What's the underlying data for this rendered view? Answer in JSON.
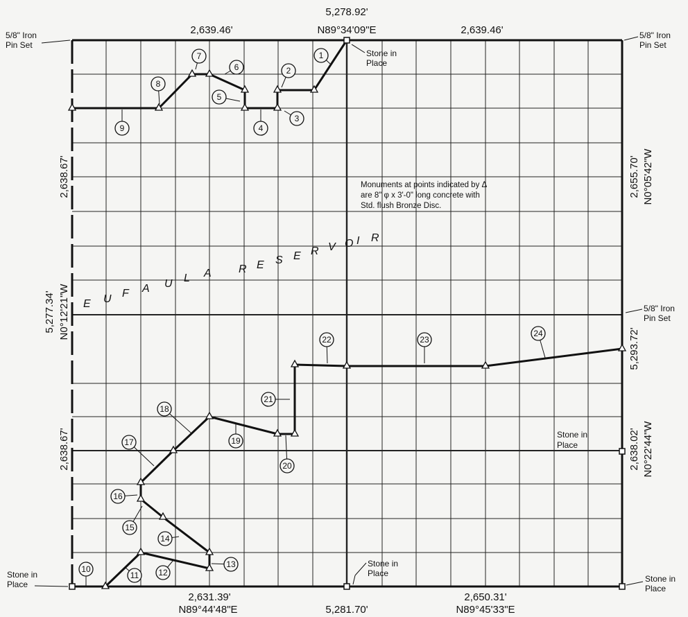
{
  "top": {
    "total": "5,278.92'",
    "bearing": "N89°34'09\"E",
    "left_len": "2,639.46'",
    "right_len": "2,639.46'"
  },
  "bottom": {
    "total": "5,281.70'",
    "left_len": "2,631.39'",
    "left_bearing": "N89°44'48\"E",
    "right_len": "2,650.31'",
    "right_bearing": "N89°45'33\"E"
  },
  "left_side": {
    "total": "5,277.34'",
    "bearing": "N0°12'21\"W",
    "upper_len": "2,638.67'",
    "lower_len": "2,638.67'"
  },
  "right_side": {
    "upper_len": "2,655.70'",
    "upper_bearing": "N0°05'42\"W",
    "total": "5,293.72'",
    "lower_len": "2,638.02'",
    "lower_bearing": "N0°22'44\"W"
  },
  "corners": {
    "nw_l1": "5/8\" Iron",
    "nw_l2": "Pin Set",
    "ne_l1": "5/8\" Iron",
    "ne_l2": "Pin Set",
    "e_l1": "5/8\" Iron",
    "e_l2": "Pin Set",
    "sw_l1": "Stone in",
    "sw_l2": "Place",
    "se_l1": "Stone in",
    "se_l2": "Place",
    "s_l1": "Stone in",
    "s_l2": "Place",
    "n_l1": "Stone in",
    "n_l2": "Place",
    "er_l1": "Stone in",
    "er_l2": "Place"
  },
  "note": {
    "line1": "Monuments at points indicated by Δ",
    "line2": "are 8\" φ x 3'-0\" long concrete with",
    "line3": "Std. flush Bronze Disc."
  },
  "reservoir": {
    "letters": [
      "E",
      "U",
      "F",
      "A",
      "U",
      "L",
      "A",
      "R",
      "E",
      "S",
      "E",
      "R",
      "V",
      "O",
      "I",
      "R"
    ]
  },
  "callouts": [
    "1",
    "2",
    "3",
    "4",
    "5",
    "6",
    "7",
    "8",
    "9",
    "10",
    "11",
    "12",
    "13",
    "14",
    "15",
    "16",
    "17",
    "18",
    "19",
    "20",
    "21",
    "22",
    "23",
    "24"
  ]
}
